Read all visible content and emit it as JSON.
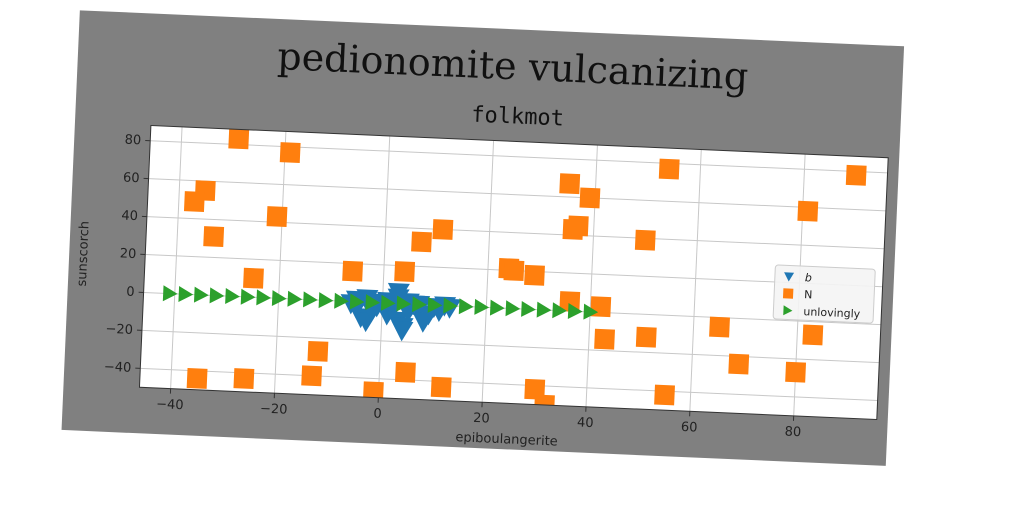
{
  "chart_data": {
    "type": "scatter",
    "suptitle": "pedionomite vulcanizing",
    "title": "folkmot",
    "xlabel": "epiboulangerite",
    "ylabel": "sunscorch",
    "xlim": [
      -46,
      96
    ],
    "ylim": [
      -50,
      88
    ],
    "xticks": [
      -40,
      -20,
      0,
      20,
      40,
      60,
      80
    ],
    "xtick_labels": [
      "−40",
      "−20",
      "0",
      "20",
      "40",
      "60",
      "80"
    ],
    "yticks": [
      -40,
      -20,
      0,
      20,
      40,
      60,
      80
    ],
    "ytick_labels": [
      "−40",
      "−20",
      "0",
      "20",
      "40",
      "60",
      "80"
    ],
    "grid": true,
    "legend_position": "right",
    "series": [
      {
        "name": "b",
        "marker": "triangle-down",
        "color": "#1f77b4",
        "x": [
          -6,
          -5,
          -4,
          -3,
          -2,
          -1,
          0,
          1,
          2,
          3,
          4,
          5,
          6,
          7,
          8,
          9,
          10,
          11,
          12,
          13,
          -5,
          -3,
          -1,
          1,
          3,
          5,
          7,
          3,
          4
        ],
        "y": [
          -1,
          -3,
          -8,
          -10,
          -4,
          -2,
          -1,
          -6,
          -3,
          -9,
          -12,
          -4,
          0,
          -2,
          -9,
          -5,
          -1,
          -3,
          0,
          -1,
          1,
          2,
          0,
          1,
          3,
          1,
          0,
          6,
          -14
        ]
      },
      {
        "name": "N",
        "marker": "square",
        "color": "#ff7f0e",
        "x": [
          -29,
          -19,
          -35,
          -37,
          -33,
          -21,
          -25,
          -35,
          -26,
          -12,
          -13,
          -6,
          4,
          5,
          7,
          11,
          12,
          24,
          25,
          29,
          30,
          32,
          35,
          36,
          37,
          39,
          43,
          42,
          50,
          51,
          54,
          55,
          65,
          69,
          80,
          81,
          83,
          90,
          -1,
          36
        ],
        "y": [
          83,
          77,
          55,
          49,
          31,
          43,
          10,
          -44,
          -43,
          -27,
          -40,
          16,
          17,
          -36,
          33,
          40,
          -43,
          21,
          20,
          18,
          -42,
          -50,
          67,
          43,
          45,
          60,
          -14,
          3,
          39,
          -12,
          77,
          -42,
          -5,
          -24,
          -27,
          58,
          -7,
          78,
          -47,
          5
        ]
      },
      {
        "name": "unlovingly",
        "marker": "triangle-right",
        "color": "#2ca02c",
        "x": [
          -41,
          -38,
          -35,
          -32,
          -29,
          -26,
          -23,
          -20,
          -17,
          -14,
          -11,
          -8,
          -5,
          -2,
          1,
          4,
          7,
          10,
          13,
          16,
          19,
          22,
          25,
          28,
          31,
          34,
          37,
          40
        ],
        "y": [
          0,
          0,
          0,
          0,
          0,
          0,
          0,
          0,
          0,
          0,
          0,
          0,
          0,
          0,
          0,
          0,
          0,
          0,
          0,
          0,
          0,
          0,
          0,
          0,
          0,
          0,
          0,
          0
        ]
      }
    ]
  },
  "colors": {
    "frame": "#808080",
    "axes_bg": "#ffffff",
    "grid": "#c8c8c8"
  }
}
